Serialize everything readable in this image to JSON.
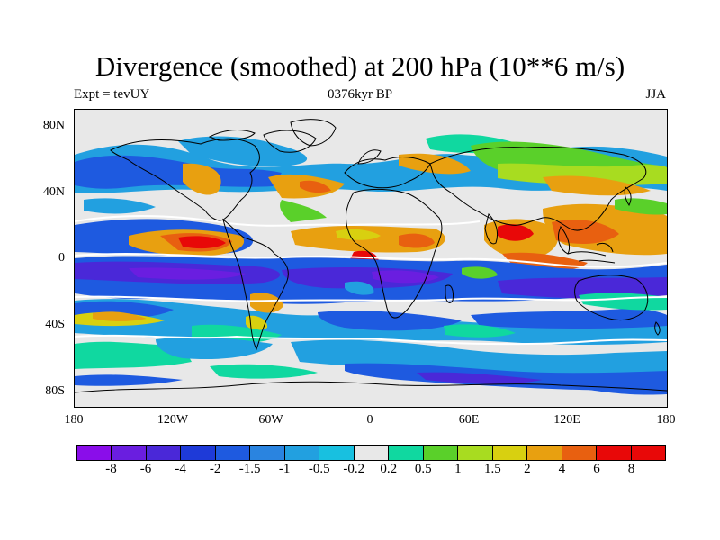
{
  "title": "Divergence (smoothed) at 200 hPa (10**6 m/s)",
  "subtitle_left": "Expt = tevUY",
  "subtitle_center": "0376kyr BP",
  "subtitle_right": "JJA",
  "lat_labels": [
    "80N",
    "40N",
    "0",
    "40S",
    "80S"
  ],
  "lon_labels": [
    "180",
    "120W",
    "60W",
    "0",
    "60E",
    "120E",
    "180"
  ],
  "colorbar": {
    "labels": [
      "-8",
      "-6",
      "-4",
      "-2",
      "-1.5",
      "-1",
      "-0.5",
      "-0.2",
      "0.2",
      "0.5",
      "1",
      "1.5",
      "2",
      "4",
      "6",
      "8"
    ],
    "colors": [
      "#8a0dea",
      "#6a1ee0",
      "#4a28d8",
      "#1e3ad8",
      "#1e5ae0",
      "#2a84e0",
      "#22a0e0",
      "#18c0e0",
      "#e8e8e8",
      "#10d8a0",
      "#5ad02a",
      "#a8dc20",
      "#d8d010",
      "#e8a010",
      "#e86010",
      "#e80808",
      "#e80808"
    ]
  }
}
